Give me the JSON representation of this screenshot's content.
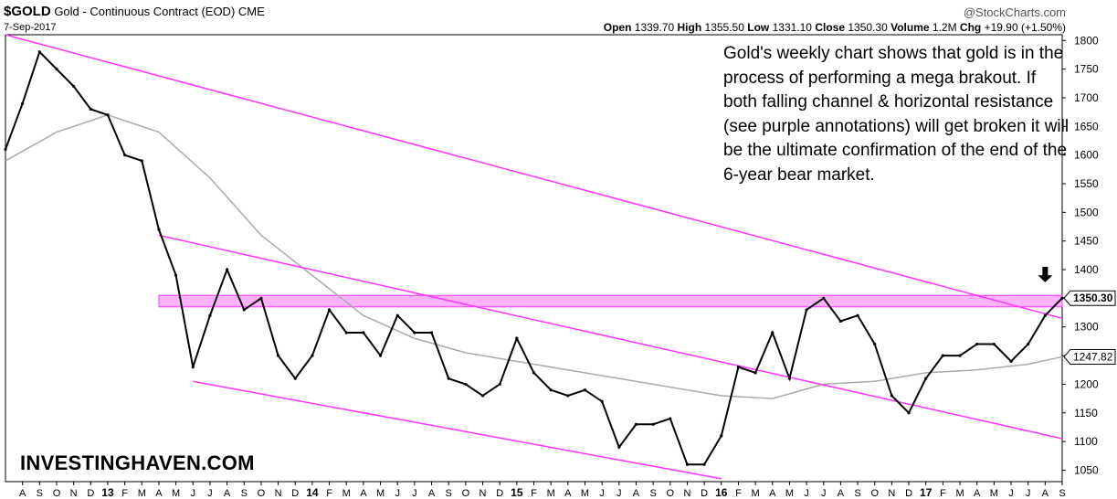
{
  "header": {
    "symbol": "$GOLD",
    "description": "Gold - Continuous Contract (EOD)",
    "exchange": "CME",
    "date": "7-Sep-2017",
    "copyright": "@StockCharts.com",
    "open_label": "Open",
    "open": "1339.70",
    "high_label": "High",
    "high": "1355.50",
    "low_label": "Low",
    "low": "1331.10",
    "close_label": "Close",
    "close": "1350.30",
    "volume_label": "Volume",
    "volume": "1.2M",
    "chg_label": "Chg",
    "chg": "+19.90 (+1.50%)"
  },
  "annotation": "Gold's weekly chart shows that gold is in the process of performing a mega brakout. If both falling channel & horizontal resistance (see purple annotations) will get broken it will be the ultimate confirmation of the end of the 6-year bear market.",
  "watermark": "INVESTINGHAVEN.COM",
  "colors": {
    "channel": "#ff33ff",
    "resistance_fill": "#ff99ff",
    "ma": "#aaaaaa",
    "price": "#000000",
    "arrow": "#000000"
  },
  "chart_data": {
    "type": "line",
    "x_unit": "month",
    "x_range": [
      "2012-07",
      "2017-09"
    ],
    "ylim": [
      1030,
      1810
    ],
    "y_scale": "linear",
    "y_ticks": [
      1050,
      1100,
      1150,
      1200,
      1250,
      1300,
      1350,
      1400,
      1450,
      1500,
      1550,
      1600,
      1650,
      1700,
      1750,
      1800
    ],
    "x_tick_labels": [
      "A",
      "S",
      "O",
      "N",
      "D",
      "13",
      "F",
      "M",
      "A",
      "M",
      "J",
      "J",
      "A",
      "S",
      "O",
      "N",
      "D",
      "14",
      "F",
      "M",
      "A",
      "M",
      "J",
      "J",
      "A",
      "S",
      "O",
      "N",
      "D",
      "15",
      "F",
      "M",
      "A",
      "M",
      "J",
      "J",
      "A",
      "S",
      "O",
      "N",
      "D",
      "16",
      "F",
      "M",
      "A",
      "M",
      "J",
      "J",
      "A",
      "S",
      "O",
      "N",
      "D",
      "17",
      "F",
      "M",
      "A",
      "M",
      "J",
      "J",
      "A",
      "S"
    ],
    "price_labels": {
      "last_close": "1350.30",
      "moving_average": "1247.82"
    },
    "series": [
      {
        "name": "",
        "x": [
          "2012-07",
          "2012-08",
          "2012-09",
          "2012-10",
          "2012-11",
          "2012-12",
          "2013-01",
          "2013-02",
          "2013-03",
          "2013-04",
          "2013-05",
          "2013-06",
          "2013-07",
          "2013-08",
          "2013-09",
          "2013-10",
          "2013-11",
          "2013-12",
          "2014-01",
          "2014-02",
          "2014-03",
          "2014-04",
          "2014-05",
          "2014-06",
          "2014-07",
          "2014-08",
          "2014-09",
          "2014-10",
          "2014-11",
          "2014-12",
          "2015-01",
          "2015-02",
          "2015-03",
          "2015-04",
          "2015-05",
          "2015-06",
          "2015-07",
          "2015-08",
          "2015-09",
          "2015-10",
          "2015-11",
          "2015-12",
          "2016-01",
          "2016-02",
          "2016-03",
          "2016-04",
          "2016-05",
          "2016-06",
          "2016-07",
          "2016-08",
          "2016-09",
          "2016-10",
          "2016-11",
          "2016-12",
          "2017-01",
          "2017-02",
          "2017-03",
          "2017-04",
          "2017-05",
          "2017-06",
          "2017-07",
          "2017-08",
          "2017-09"
        ],
        "values": [
          1610,
          1690,
          1780,
          1750,
          1720,
          1680,
          1670,
          1600,
          1590,
          1470,
          1390,
          1230,
          1320,
          1400,
          1330,
          1350,
          1250,
          1210,
          1250,
          1330,
          1290,
          1290,
          1250,
          1320,
          1290,
          1290,
          1210,
          1200,
          1180,
          1200,
          1280,
          1220,
          1190,
          1180,
          1190,
          1170,
          1090,
          1130,
          1130,
          1140,
          1060,
          1060,
          1110,
          1230,
          1220,
          1290,
          1210,
          1330,
          1350,
          1310,
          1320,
          1270,
          1180,
          1150,
          1210,
          1250,
          1250,
          1270,
          1270,
          1240,
          1270,
          1320,
          1350.3
        ]
      },
      {
        "name": "",
        "x": [
          "2012-07",
          "2012-10",
          "2013-01",
          "2013-04",
          "2013-07",
          "2013-10",
          "2014-01",
          "2014-04",
          "2014-07",
          "2014-10",
          "2015-01",
          "2015-04",
          "2015-07",
          "2015-10",
          "2016-01",
          "2016-04",
          "2016-07",
          "2016-10",
          "2017-01",
          "2017-04",
          "2017-07",
          "2017-09"
        ],
        "values": [
          1590,
          1640,
          1670,
          1640,
          1560,
          1460,
          1390,
          1320,
          1280,
          1255,
          1240,
          1225,
          1210,
          1195,
          1180,
          1175,
          1200,
          1205,
          1220,
          1225,
          1235,
          1247.82
        ]
      }
    ],
    "channel_lines": [
      {
        "x": [
          "2012-07",
          "2017-09"
        ],
        "values": [
          1810,
          1315
        ]
      },
      {
        "x": [
          "2013-04",
          "2017-09"
        ],
        "values": [
          1460,
          1105
        ]
      },
      {
        "x": [
          "2013-06",
          "2016-01"
        ],
        "values": [
          1205,
          1035
        ]
      }
    ],
    "resistance_band": {
      "from": 1335,
      "to": 1355
    }
  }
}
